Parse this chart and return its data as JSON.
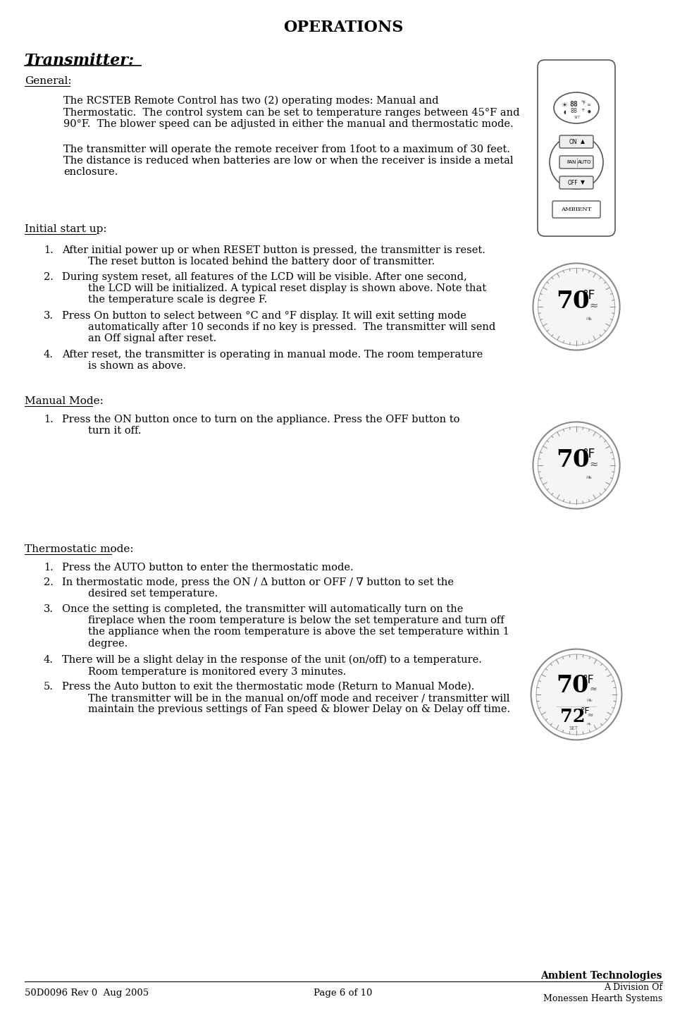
{
  "title": "OPERATIONS",
  "bg_color": "#ffffff",
  "text_color": "#000000",
  "page_width": 9.75,
  "page_height": 14.41,
  "footer_left": "50D0096 Rev 0  Aug 2005",
  "footer_center": "Page 6 of 10",
  "footer_right1": "Ambient Technologies",
  "footer_right2": "A Division Of",
  "footer_right3": "Monessen Hearth Systems",
  "section_transmitter": "Transmitter:",
  "section_general": "General:",
  "general_para1": "The RCSTEB Remote Control has two (2) operating modes: Manual and\nThermostatic.  The control system can be set to temperature ranges between 45°F and\n90°F.  The blower speed can be adjusted in either the manual and thermostatic mode.",
  "general_para2": "The transmitter will operate the remote receiver from 1foot to a maximum of 30 feet.\nThe distance is reduced when batteries are low or when the receiver is inside a metal\nenclosure.",
  "section_initial": "Initial start up:",
  "initial_items": [
    "After initial power up or when RESET button is pressed, the transmitter is reset.\n        The reset button is located behind the battery door of transmitter.",
    "During system reset, all features of the LCD will be visible. After one second,\n        the LCD will be initialized. A typical reset display is shown above. Note that\n        the temperature scale is degree F.",
    "Press On button to select between °C and °F display. It will exit setting mode\n        automatically after 10 seconds if no key is pressed.  The transmitter will send\n        an Off signal after reset.",
    "After reset, the transmitter is operating in manual mode. The room temperature\n        is shown as above."
  ],
  "section_manual": "Manual Mode:",
  "manual_items": [
    "Press the ON button once to turn on the appliance. Press the OFF button to\n        turn it off."
  ],
  "section_thermo": "Thermostatic mode:",
  "thermo_items": [
    "Press the AUTO button to enter the thermostatic mode.",
    "In thermostatic mode, press the ON / Δ button or OFF / ∇ button to set the\n        desired set temperature.",
    "Once the setting is completed, the transmitter will automatically turn on the\n        fireplace when the room temperature is below the set temperature and turn off\n        the appliance when the room temperature is above the set temperature within 1\n        degree.",
    "There will be a slight delay in the response of the unit (on/off) to a temperature.\n        Room temperature is monitored every 3 minutes.",
    "Press the Auto button to exit the thermostatic mode (Return to Manual Mode).\n        The transmitter will be in the manual on/off mode and receiver / transmitter will\n        maintain the previous settings of Fan speed & blower Delay on & Delay off time."
  ]
}
